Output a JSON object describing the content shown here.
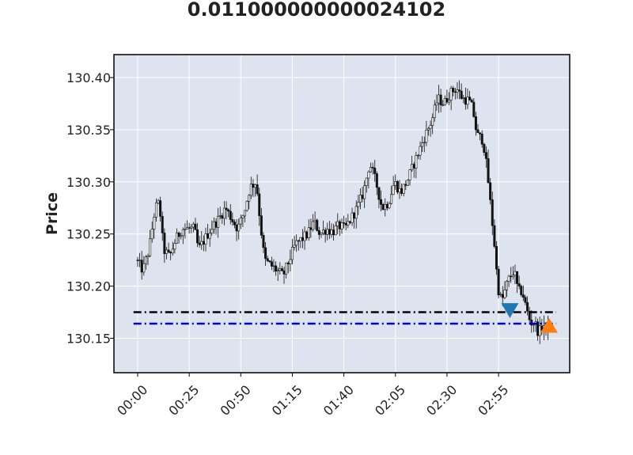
{
  "title": "0.011000000000024102",
  "chart_data": {
    "type": "candlestick",
    "title": "0.011000000000024102",
    "ylabel": "Price",
    "xlabel": "",
    "ylim": [
      130.117,
      130.422
    ],
    "y_ticks": [
      "130.15",
      "130.20",
      "130.25",
      "130.30",
      "130.35",
      "130.40"
    ],
    "y_tick_values": [
      130.15,
      130.2,
      130.25,
      130.3,
      130.35,
      130.4
    ],
    "x_ticks": [
      "00:00",
      "00:25",
      "00:50",
      "01:15",
      "01:40",
      "02:05",
      "02:30",
      "02:55"
    ],
    "x_tick_minutes": [
      0,
      25,
      50,
      75,
      100,
      125,
      150,
      175
    ],
    "xlim_minutes": [
      -11.5,
      209.5
    ],
    "grid": true,
    "background": "#dde3ef",
    "candle_color": "#111111",
    "price_path": [
      [
        0,
        130.225
      ],
      [
        3,
        130.215
      ],
      [
        6,
        130.235
      ],
      [
        9,
        130.275
      ],
      [
        11,
        130.28
      ],
      [
        13,
        130.235
      ],
      [
        16,
        130.228
      ],
      [
        19,
        130.245
      ],
      [
        22,
        130.255
      ],
      [
        25,
        130.255
      ],
      [
        28,
        130.255
      ],
      [
        30,
        130.235
      ],
      [
        33,
        130.245
      ],
      [
        36,
        130.255
      ],
      [
        40,
        130.265
      ],
      [
        43,
        130.275
      ],
      [
        46,
        130.265
      ],
      [
        49,
        130.255
      ],
      [
        52,
        130.27
      ],
      [
        55,
        130.295
      ],
      [
        58,
        130.3
      ],
      [
        60,
        130.26
      ],
      [
        62,
        130.225
      ],
      [
        65,
        130.22
      ],
      [
        68,
        130.215
      ],
      [
        71,
        130.21
      ],
      [
        74,
        130.225
      ],
      [
        77,
        130.24
      ],
      [
        80,
        130.245
      ],
      [
        83,
        130.25
      ],
      [
        86,
        130.262
      ],
      [
        89,
        130.25
      ],
      [
        92,
        130.255
      ],
      [
        95,
        130.252
      ],
      [
        98,
        130.258
      ],
      [
        101,
        130.255
      ],
      [
        104,
        130.265
      ],
      [
        107,
        130.275
      ],
      [
        110,
        130.29
      ],
      [
        113,
        130.318
      ],
      [
        116,
        130.3
      ],
      [
        119,
        130.275
      ],
      [
        122,
        130.28
      ],
      [
        125,
        130.3
      ],
      [
        128,
        130.29
      ],
      [
        131,
        130.3
      ],
      [
        134,
        130.315
      ],
      [
        137,
        130.33
      ],
      [
        140,
        130.345
      ],
      [
        143,
        130.358
      ],
      [
        146,
        130.38
      ],
      [
        149,
        130.375
      ],
      [
        152,
        130.385
      ],
      [
        155,
        130.39
      ],
      [
        158,
        130.38
      ],
      [
        161,
        130.378
      ],
      [
        163,
        130.37
      ],
      [
        165,
        130.345
      ],
      [
        168,
        130.34
      ],
      [
        170,
        130.31
      ],
      [
        172,
        130.27
      ],
      [
        174,
        130.23
      ],
      [
        175,
        130.2
      ],
      [
        177,
        130.185
      ],
      [
        180,
        130.205
      ],
      [
        183,
        130.215
      ],
      [
        185,
        130.195
      ],
      [
        187,
        130.195
      ],
      [
        189,
        130.178
      ],
      [
        191,
        130.165
      ],
      [
        193,
        130.165
      ],
      [
        195,
        130.155
      ],
      [
        197,
        130.163
      ],
      [
        199,
        130.16
      ]
    ],
    "hlines": [
      {
        "value": 130.175,
        "color": "#000000",
        "style": "dashdot"
      },
      {
        "value": 130.164,
        "color": "#0000cc",
        "style": "dashdot"
      }
    ],
    "markers": [
      {
        "type": "sell",
        "minute": 180.5,
        "price": 130.177,
        "color": "#1f77b4",
        "shape": "triangle-down"
      },
      {
        "type": "buy",
        "minute": 199.5,
        "price": 130.162,
        "color": "#ff7f0e",
        "shape": "triangle-up"
      }
    ]
  }
}
